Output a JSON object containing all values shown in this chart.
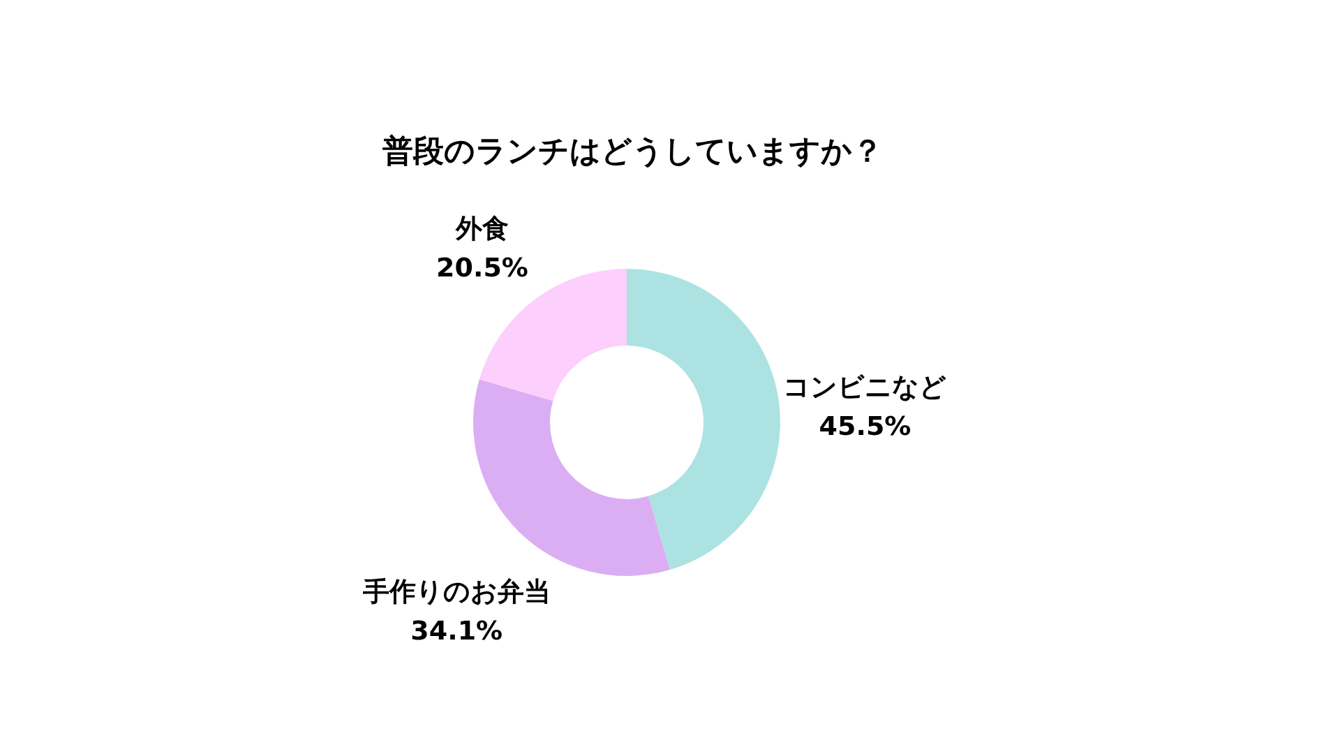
{
  "chart_data": {
    "type": "donut",
    "title": "普段のランチはどうしていますか？",
    "categories": [
      "コンビニなど",
      "手作りのお弁当",
      "外食"
    ],
    "values": [
      45.5,
      34.1,
      20.5
    ],
    "value_labels": [
      "45.5%",
      "34.1%",
      "20.5%"
    ],
    "colors": [
      "#ace3e2",
      "#dbaef3",
      "#fdcffd"
    ],
    "legend": false
  }
}
